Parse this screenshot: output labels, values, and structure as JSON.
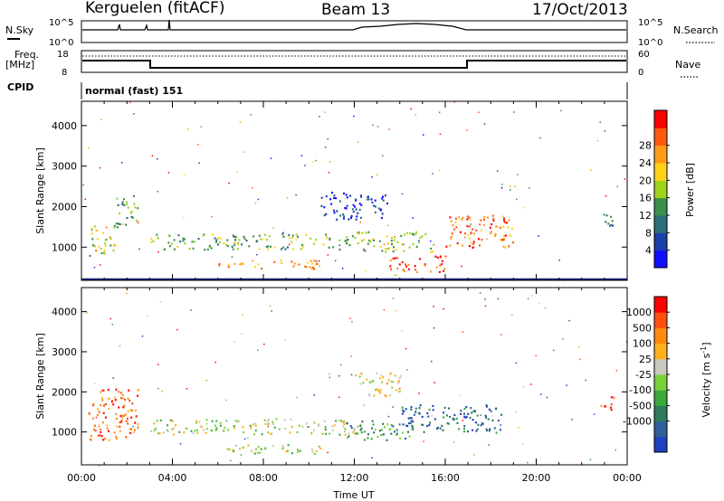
{
  "header": {
    "station": "Kerguelen (fitACF)",
    "beam": "Beam 13",
    "date": "17/Oct/2013"
  },
  "top_panels": {
    "nsky_label": "N.Sky",
    "nsky_ticks": [
      "10^5",
      "10^0"
    ],
    "nsearch_label": "N.Search",
    "nsearch_ticks": [
      "10^5",
      "10^0"
    ],
    "freq_label": "Freq.",
    "freq_unit": "[MHz]",
    "freq_ticks": [
      "18",
      "8"
    ],
    "nave_label": "Nave",
    "nave_ticks": [
      "60",
      "0"
    ],
    "cpid_label": "CPID",
    "cpid_text": "normal (fast) 151"
  },
  "chart_data": [
    {
      "type": "heatmap",
      "name": "power",
      "ylabel": "Slant Range [km]",
      "yticks": [
        "1000",
        "2000",
        "3000",
        "4000"
      ],
      "ylim": [
        180,
        4600
      ],
      "x_ticks": [
        "00:00",
        "04:00",
        "08:00",
        "12:00",
        "16:00",
        "20:00",
        "00:00"
      ],
      "colorbar": {
        "label": "Power [dB]",
        "ticks": [
          "4",
          "8",
          "12",
          "16",
          "20",
          "24",
          "28"
        ],
        "colors": [
          "#1010ff",
          "#1d3fa8",
          "#2a6e78",
          "#3a8f4a",
          "#9ed21c",
          "#ffd21a",
          "#ff9b1a",
          "#ff5a10",
          "#ff0000"
        ]
      },
      "regions": [
        {
          "t0": 0.3,
          "t1": 1.5,
          "r0": 800,
          "r1": 1600,
          "level": 0.55
        },
        {
          "t0": 1.5,
          "t1": 2.5,
          "r0": 1500,
          "r1": 2300,
          "level": 0.4
        },
        {
          "t0": 3.0,
          "t1": 12.0,
          "r0": 950,
          "r1": 1350,
          "level": 0.45
        },
        {
          "t0": 6.0,
          "t1": 10.5,
          "r0": 480,
          "r1": 700,
          "level": 0.7
        },
        {
          "t0": 10.5,
          "t1": 13.5,
          "r0": 1700,
          "r1": 2400,
          "level": 0.15
        },
        {
          "t0": 12.0,
          "t1": 15.5,
          "r0": 900,
          "r1": 1400,
          "level": 0.5
        },
        {
          "t0": 13.5,
          "t1": 16.0,
          "r0": 400,
          "r1": 800,
          "level": 0.85
        },
        {
          "t0": 16.0,
          "t1": 19.0,
          "r0": 1000,
          "r1": 1800,
          "level": 0.8
        },
        {
          "t0": 22.8,
          "t1": 23.4,
          "r0": 1500,
          "r1": 1900,
          "level": 0.3
        }
      ]
    },
    {
      "type": "heatmap",
      "name": "velocity",
      "ylabel": "Slant Range [km]",
      "yticks": [
        "1000",
        "2000",
        "3000",
        "4000"
      ],
      "ylim": [
        180,
        4600
      ],
      "x_ticks": [
        "00:00",
        "04:00",
        "08:00",
        "12:00",
        "16:00",
        "20:00",
        "00:00"
      ],
      "xlabel": "Time UT",
      "colorbar": {
        "label": "Velocity [m s",
        "label_sup": "-1",
        "label_end": "]",
        "ticks": [
          "1000",
          "500",
          "100",
          "25",
          "-25",
          "-100",
          "-500",
          "-1000"
        ],
        "colors": [
          "#2040c0",
          "#2f5f9a",
          "#2e7a5a",
          "#3aa83a",
          "#7ad03a",
          "#c8c8c0",
          "#ffb020",
          "#ff8a10",
          "#ff5010",
          "#ff0000"
        ]
      },
      "regions": [
        {
          "t0": 0.3,
          "t1": 2.5,
          "r0": 800,
          "r1": 2100,
          "level": 0.8
        },
        {
          "t0": 3.0,
          "t1": 12.0,
          "r0": 950,
          "r1": 1350,
          "level": 0.5
        },
        {
          "t0": 6.0,
          "t1": 10.5,
          "r0": 480,
          "r1": 700,
          "level": 0.5
        },
        {
          "t0": 11.5,
          "t1": 14.5,
          "r0": 800,
          "r1": 1300,
          "level": 0.3
        },
        {
          "t0": 14.0,
          "t1": 18.5,
          "r0": 1000,
          "r1": 1700,
          "level": 0.15
        },
        {
          "t0": 12.0,
          "t1": 14.0,
          "r0": 1900,
          "r1": 2500,
          "level": 0.6
        },
        {
          "t0": 22.8,
          "t1": 23.4,
          "r0": 1500,
          "r1": 1900,
          "level": 0.8
        }
      ]
    }
  ]
}
